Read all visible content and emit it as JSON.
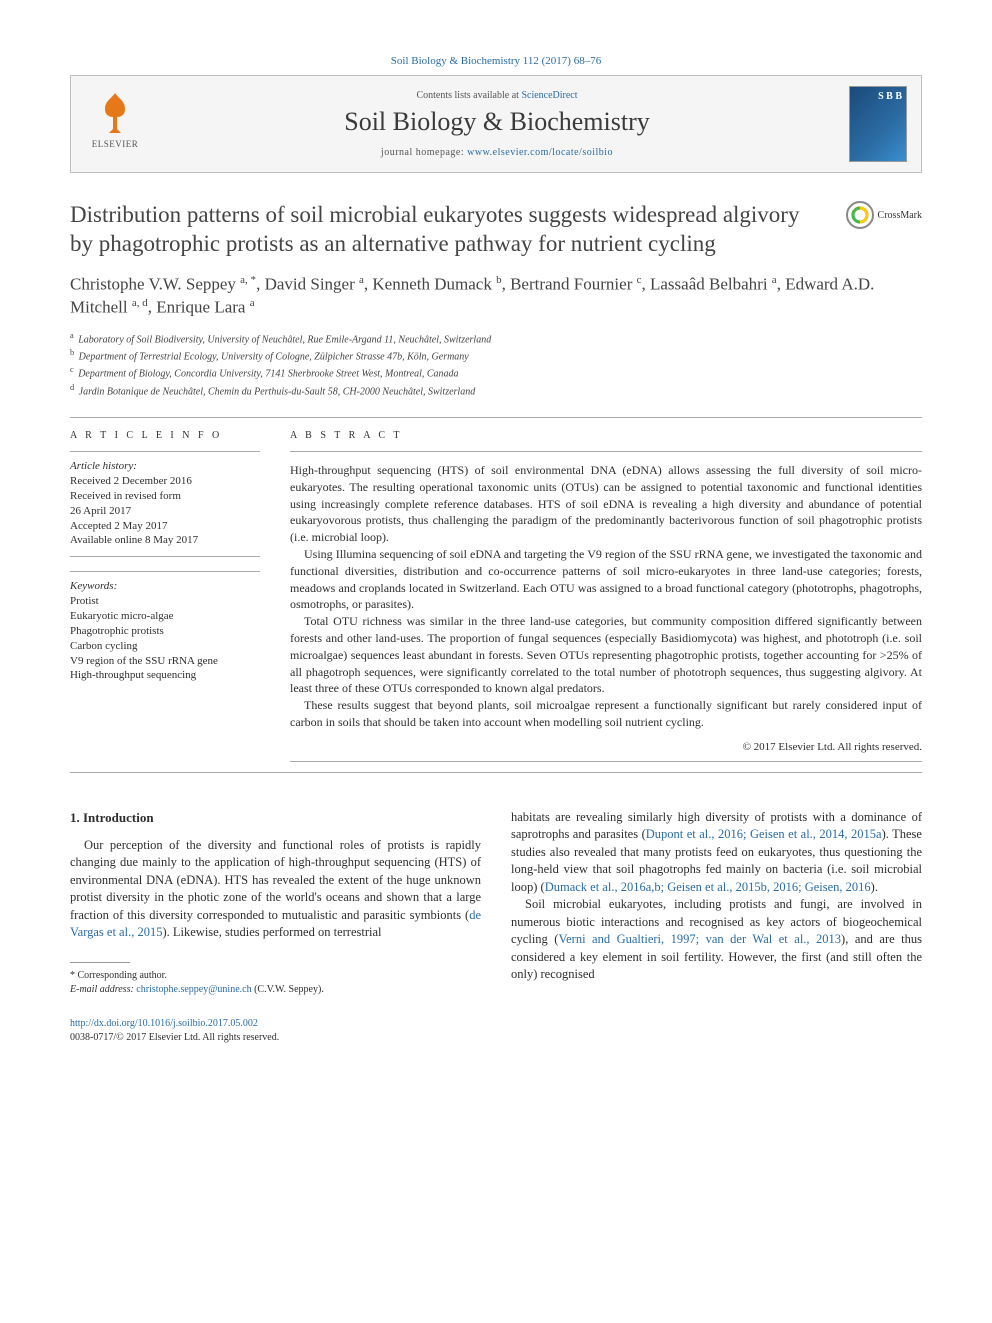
{
  "citation": "Soil Biology & Biochemistry 112 (2017) 68–76",
  "banner": {
    "contents_prefix": "Contents lists available at ",
    "contents_link": "ScienceDirect",
    "journal_name": "Soil Biology & Biochemistry",
    "homepage_prefix": "journal homepage: ",
    "homepage_link": "www.elsevier.com/locate/soilbio",
    "publisher": "ELSEVIER"
  },
  "crossmark_label": "CrossMark",
  "title": "Distribution patterns of soil microbial eukaryotes suggests widespread algivory by phagotrophic protists as an alternative pathway for nutrient cycling",
  "authors_html": "Christophe V.W. Seppey <sup>a, *</sup>, David Singer <sup>a</sup>, Kenneth Dumack <sup>b</sup>, Bertrand Fournier <sup>c</sup>, Lassaâd Belbahri <sup>a</sup>, Edward A.D. Mitchell <sup>a, d</sup>, Enrique Lara <sup>a</sup>",
  "affiliations": [
    {
      "sup": "a",
      "text": "Laboratory of Soil Biodiversity, University of Neuchâtel, Rue Emile-Argand 11, Neuchâtel, Switzerland"
    },
    {
      "sup": "b",
      "text": "Department of Terrestrial Ecology, University of Cologne, Zülpicher Strasse 47b, Köln, Germany"
    },
    {
      "sup": "c",
      "text": "Department of Biology, Concordia University, 7141 Sherbrooke Street West, Montreal, Canada"
    },
    {
      "sup": "d",
      "text": "Jardin Botanique de Neuchâtel, Chemin du Perthuis-du-Sault 58, CH-2000 Neuchâtel, Switzerland"
    }
  ],
  "info": {
    "section_label": "A R T I C L E   I N F O",
    "history_label": "Article history:",
    "history": [
      "Received 2 December 2016",
      "Received in revised form",
      "26 April 2017",
      "Accepted 2 May 2017",
      "Available online 8 May 2017"
    ],
    "keywords_label": "Keywords:",
    "keywords": [
      "Protist",
      "Eukaryotic micro-algae",
      "Phagotrophic protists",
      "Carbon cycling",
      "V9 region of the SSU rRNA gene",
      "High-throughput sequencing"
    ]
  },
  "abstract": {
    "section_label": "A B S T R A C T",
    "paragraphs": [
      "High-throughput sequencing (HTS) of soil environmental DNA (eDNA) allows assessing the full diversity of soil micro-eukaryotes. The resulting operational taxonomic units (OTUs) can be assigned to potential taxonomic and functional identities using increasingly complete reference databases. HTS of soil eDNA is revealing a high diversity and abundance of potential eukaryovorous protists, thus challenging the paradigm of the predominantly bacterivorous function of soil phagotrophic protists (i.e. microbial loop).",
      "Using Illumina sequencing of soil eDNA and targeting the V9 region of the SSU rRNA gene, we investigated the taxonomic and functional diversities, distribution and co-occurrence patterns of soil micro-eukaryotes in three land-use categories; forests, meadows and croplands located in Switzerland. Each OTU was assigned to a broad functional category (phototrophs, phagotrophs, osmotrophs, or parasites).",
      "Total OTU richness was similar in the three land-use categories, but community composition differed significantly between forests and other land-uses. The proportion of fungal sequences (especially Basidiomycota) was highest, and phototroph (i.e. soil microalgae) sequences least abundant in forests. Seven OTUs representing phagotrophic protists, together accounting for >25% of all phagotroph sequences, were significantly correlated to the total number of phototroph sequences, thus suggesting algivory. At least three of these OTUs corresponded to known algal predators.",
      "These results suggest that beyond plants, soil microalgae represent a functionally significant but rarely considered input of carbon in soils that should be taken into account when modelling soil nutrient cycling."
    ],
    "copyright": "© 2017 Elsevier Ltd. All rights reserved."
  },
  "body": {
    "intro_heading": "1. Introduction",
    "left_p1_a": "Our perception of the diversity and functional roles of protists is rapidly changing due mainly to the application of high-throughput sequencing (HTS) of environmental DNA (eDNA). HTS has revealed the extent of the huge unknown protist diversity in the photic zone of the world's oceans and shown that a large fraction of this diversity corresponded to mutualistic and parasitic symbionts (",
    "left_p1_link": "de Vargas et al., 2015",
    "left_p1_b": "). Likewise, studies performed on terrestrial",
    "right_p1_a": "habitats are revealing similarly high diversity of protists with a dominance of saprotrophs and parasites (",
    "right_p1_link1": "Dupont et al., 2016; Geisen et al., 2014, 2015a",
    "right_p1_b": "). These studies also revealed that many protists feed on eukaryotes, thus questioning the long-held view that soil phagotrophs fed mainly on bacteria (i.e. soil microbial loop) (",
    "right_p1_link2": "Dumack et al., 2016a,b; Geisen et al., 2015b, 2016; Geisen, 2016",
    "right_p1_c": ").",
    "right_p2_a": "Soil microbial eukaryotes, including protists and fungi, are involved in numerous biotic interactions and recognised as key actors of biogeochemical cycling (",
    "right_p2_link": "Verni and Gualtieri, 1997; van der Wal et al., 2013",
    "right_p2_b": "), and are thus considered a key element in soil fertility. However, the first (and still often the only) recognised"
  },
  "footnotes": {
    "corr": "* Corresponding author.",
    "email_label": "E-mail address: ",
    "email": "christophe.seppey@unine.ch",
    "email_who": " (C.V.W. Seppey)."
  },
  "footer": {
    "doi": "http://dx.doi.org/10.1016/j.soilbio.2017.05.002",
    "issn_line": "0038-0717/© 2017 Elsevier Ltd. All rights reserved."
  },
  "colors": {
    "link": "#2b6ca3",
    "orange": "#e67817",
    "text": "#2e2e2e"
  }
}
